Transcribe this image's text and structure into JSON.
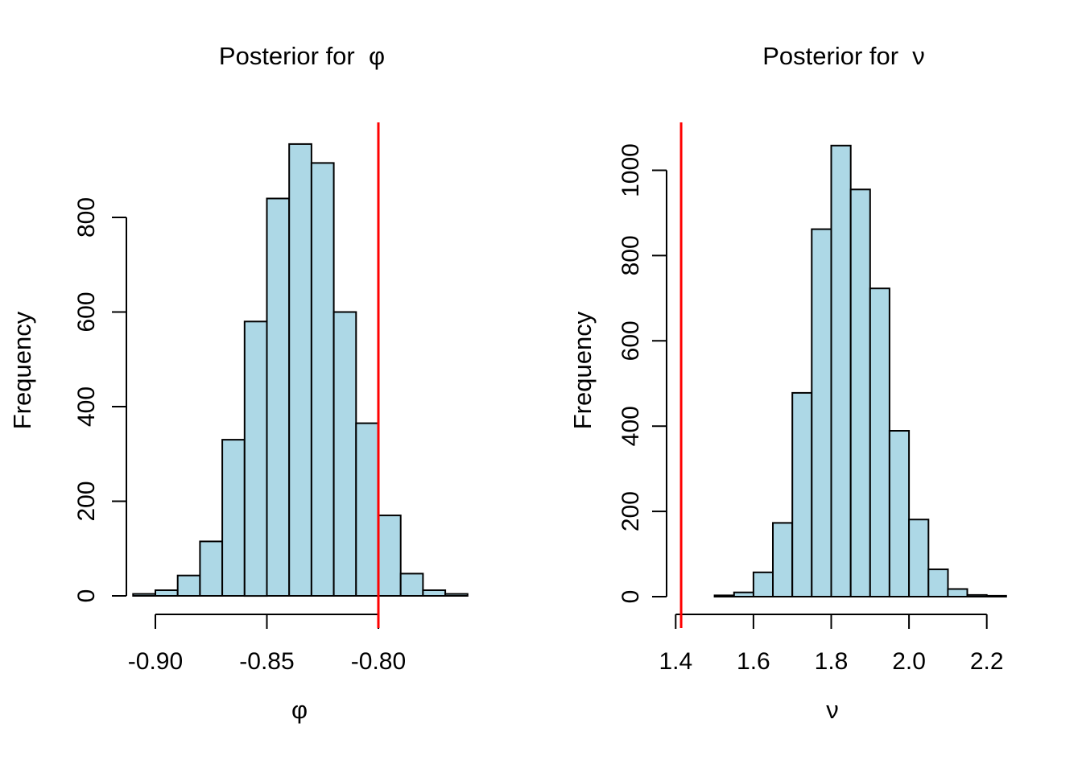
{
  "figure": {
    "background": "#ffffff",
    "bar_fill": "#ADD8E6",
    "bar_stroke": "#000000",
    "axis_color": "#000000",
    "text_color": "#000000",
    "ref_line_color": "#FF0000"
  },
  "chart_data": [
    {
      "type": "bar",
      "title": "Posterior for  φ",
      "xlabel": "φ",
      "ylabel": "Frequency",
      "bins": {
        "start": -0.91,
        "width": 0.01
      },
      "frequencies": [
        4,
        12,
        43,
        115,
        330,
        580,
        840,
        955,
        915,
        600,
        365,
        170,
        47,
        12,
        4
      ],
      "x_ticks": [
        -0.9,
        -0.85,
        -0.8
      ],
      "x_tick_labels": [
        "-0.90",
        "-0.85",
        "-0.80"
      ],
      "y_ticks": [
        0,
        200,
        400,
        600,
        800
      ],
      "y_tick_labels": [
        "0",
        "200",
        "400",
        "600",
        "800"
      ],
      "ref_line_x": -0.8,
      "xlim": [
        -0.91,
        -0.76
      ],
      "ylim": [
        0,
        800
      ],
      "grid": false,
      "legend": null
    },
    {
      "type": "bar",
      "title": "Posterior for  ν",
      "xlabel": "ν",
      "ylabel": "Frequency",
      "bins": {
        "start": 1.5,
        "width": 0.05
      },
      "frequencies": [
        3,
        10,
        57,
        173,
        478,
        862,
        1058,
        955,
        723,
        389,
        181,
        64,
        18,
        4,
        2
      ],
      "x_ticks": [
        1.4,
        1.6,
        1.8,
        2.0,
        2.2
      ],
      "x_tick_labels": [
        "1.4",
        "1.6",
        "1.8",
        "2.0",
        "2.2"
      ],
      "y_ticks": [
        0,
        200,
        400,
        600,
        800,
        1000
      ],
      "y_tick_labels": [
        "0",
        "200",
        "400",
        "600",
        "800",
        "1000"
      ],
      "ref_line_x": 1.414,
      "xlim": [
        1.5,
        2.25
      ],
      "ylim": [
        0,
        1000
      ],
      "grid": false,
      "legend": null
    }
  ]
}
